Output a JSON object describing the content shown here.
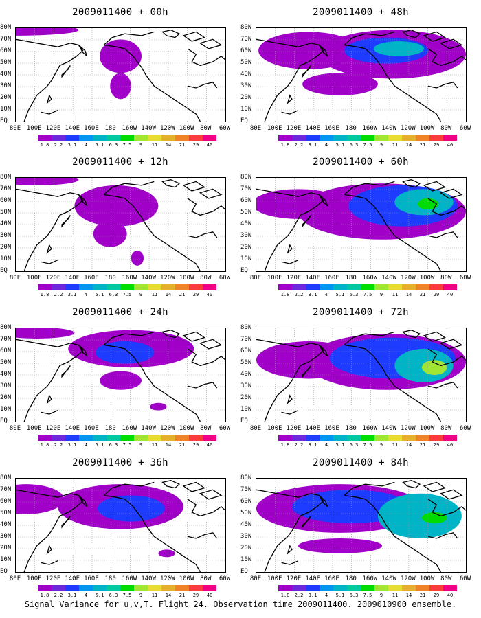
{
  "panels": [
    {
      "title": "2009011400 + 00h"
    },
    {
      "title": "2009011400 + 48h"
    },
    {
      "title": "2009011400 + 12h"
    },
    {
      "title": "2009011400 + 60h"
    },
    {
      "title": "2009011400 + 24h"
    },
    {
      "title": "2009011400 + 72h"
    },
    {
      "title": "2009011400 + 36h"
    },
    {
      "title": "2009011400 + 84h"
    }
  ],
  "lat_labels": [
    "80N",
    "70N",
    "60N",
    "50N",
    "40N",
    "30N",
    "20N",
    "10N",
    "EQ"
  ],
  "lon_labels": [
    "80E",
    "100E",
    "120E",
    "140E",
    "160E",
    "180",
    "160W",
    "140W",
    "120W",
    "100W",
    "80W",
    "60W"
  ],
  "colorbar": {
    "labels": [
      "1.8",
      "2.2",
      "3.1",
      "4",
      "5.1",
      "6.3",
      "7.5",
      "9",
      "11",
      "14",
      "21",
      "29",
      "40"
    ],
    "colors": [
      "#a000c8",
      "#6e28dc",
      "#1e3cff",
      "#0096f0",
      "#00b4c8",
      "#00c8a0",
      "#00dc00",
      "#a0e632",
      "#e6dc32",
      "#e6af2d",
      "#f08228",
      "#fa3c3c",
      "#f00082"
    ]
  },
  "footer": "Signal Variance for u,v,T. Flight 24. Observation time 2009011400. 2009010900 ensemble."
}
